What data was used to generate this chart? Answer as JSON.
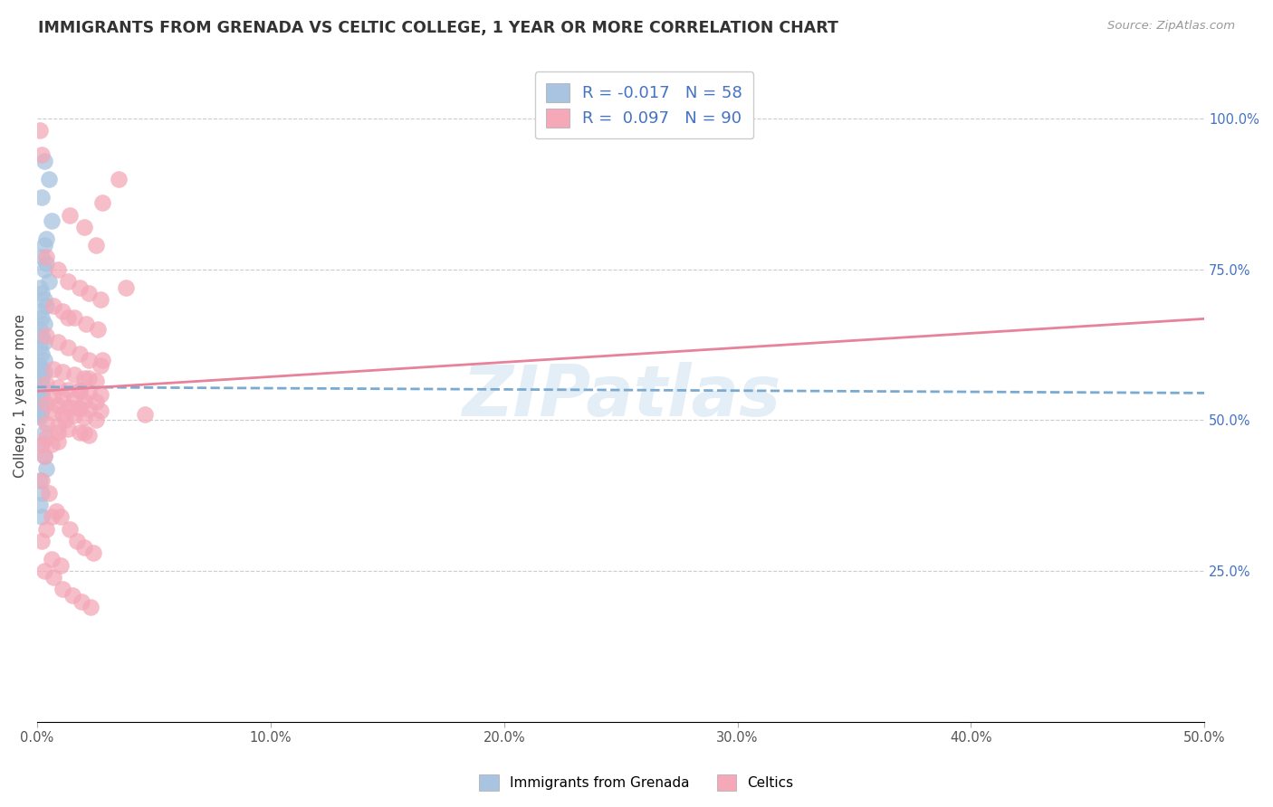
{
  "title": "IMMIGRANTS FROM GRENADA VS CELTIC COLLEGE, 1 YEAR OR MORE CORRELATION CHART",
  "source": "Source: ZipAtlas.com",
  "ylabel": "College, 1 year or more",
  "xlim": [
    0.0,
    0.5
  ],
  "ylim": [
    0.0,
    1.08
  ],
  "legend_labels": [
    "Immigrants from Grenada",
    "Celtics"
  ],
  "legend_R": [
    -0.017,
    0.097
  ],
  "legend_N": [
    58,
    90
  ],
  "blue_color": "#a8c4e0",
  "pink_color": "#f4a8b8",
  "blue_line_color": "#7aaad0",
  "pink_line_color": "#e8819a",
  "watermark": "ZIPatlas",
  "blue_intercept": 0.555,
  "blue_slope": -0.02,
  "pink_intercept": 0.548,
  "pink_slope": 0.24,
  "blue_x": [
    0.003,
    0.005,
    0.002,
    0.006,
    0.004,
    0.003,
    0.002,
    0.004,
    0.003,
    0.005,
    0.001,
    0.002,
    0.003,
    0.004,
    0.001,
    0.002,
    0.003,
    0.001,
    0.002,
    0.003,
    0.001,
    0.002,
    0.003,
    0.001,
    0.002,
    0.003,
    0.001,
    0.002,
    0.001,
    0.002,
    0.001,
    0.002,
    0.001,
    0.002,
    0.001,
    0.002,
    0.001,
    0.001,
    0.002,
    0.001,
    0.001,
    0.002,
    0.001,
    0.001,
    0.001,
    0.002,
    0.001,
    0.001,
    0.001,
    0.001,
    0.003,
    0.002,
    0.003,
    0.004,
    0.001,
    0.002,
    0.001,
    0.002
  ],
  "blue_y": [
    0.93,
    0.9,
    0.87,
    0.83,
    0.8,
    0.79,
    0.77,
    0.76,
    0.75,
    0.73,
    0.72,
    0.71,
    0.7,
    0.69,
    0.68,
    0.67,
    0.66,
    0.65,
    0.64,
    0.63,
    0.62,
    0.61,
    0.6,
    0.59,
    0.585,
    0.58,
    0.575,
    0.57,
    0.565,
    0.56,
    0.555,
    0.55,
    0.548,
    0.545,
    0.542,
    0.54,
    0.538,
    0.535,
    0.532,
    0.53,
    0.528,
    0.525,
    0.522,
    0.52,
    0.518,
    0.515,
    0.512,
    0.51,
    0.508,
    0.505,
    0.48,
    0.46,
    0.44,
    0.42,
    0.4,
    0.38,
    0.36,
    0.34
  ],
  "pink_x": [
    0.001,
    0.002,
    0.035,
    0.028,
    0.014,
    0.02,
    0.025,
    0.004,
    0.009,
    0.013,
    0.018,
    0.022,
    0.027,
    0.007,
    0.011,
    0.016,
    0.021,
    0.026,
    0.004,
    0.009,
    0.013,
    0.018,
    0.022,
    0.027,
    0.007,
    0.011,
    0.016,
    0.02,
    0.025,
    0.004,
    0.009,
    0.013,
    0.018,
    0.022,
    0.027,
    0.007,
    0.011,
    0.016,
    0.02,
    0.025,
    0.004,
    0.009,
    0.013,
    0.018,
    0.022,
    0.027,
    0.007,
    0.011,
    0.016,
    0.02,
    0.025,
    0.004,
    0.009,
    0.013,
    0.018,
    0.022,
    0.004,
    0.009,
    0.002,
    0.038,
    0.028,
    0.022,
    0.018,
    0.015,
    0.012,
    0.009,
    0.006,
    0.003,
    0.002,
    0.005,
    0.008,
    0.01,
    0.014,
    0.017,
    0.02,
    0.024,
    0.006,
    0.01,
    0.003,
    0.007,
    0.011,
    0.015,
    0.019,
    0.023,
    0.013,
    0.046,
    0.02,
    0.006,
    0.004,
    0.002
  ],
  "pink_y": [
    0.98,
    0.94,
    0.9,
    0.86,
    0.84,
    0.82,
    0.79,
    0.77,
    0.75,
    0.73,
    0.72,
    0.71,
    0.7,
    0.69,
    0.68,
    0.67,
    0.66,
    0.65,
    0.64,
    0.63,
    0.62,
    0.61,
    0.6,
    0.59,
    0.585,
    0.58,
    0.575,
    0.57,
    0.565,
    0.56,
    0.555,
    0.55,
    0.548,
    0.545,
    0.542,
    0.54,
    0.538,
    0.535,
    0.532,
    0.53,
    0.528,
    0.525,
    0.522,
    0.52,
    0.518,
    0.515,
    0.512,
    0.51,
    0.508,
    0.505,
    0.5,
    0.495,
    0.49,
    0.485,
    0.48,
    0.475,
    0.47,
    0.465,
    0.46,
    0.72,
    0.6,
    0.57,
    0.55,
    0.52,
    0.5,
    0.48,
    0.46,
    0.44,
    0.4,
    0.38,
    0.35,
    0.34,
    0.32,
    0.3,
    0.29,
    0.28,
    0.27,
    0.26,
    0.25,
    0.24,
    0.22,
    0.21,
    0.2,
    0.19,
    0.67,
    0.51,
    0.48,
    0.34,
    0.32,
    0.3
  ]
}
